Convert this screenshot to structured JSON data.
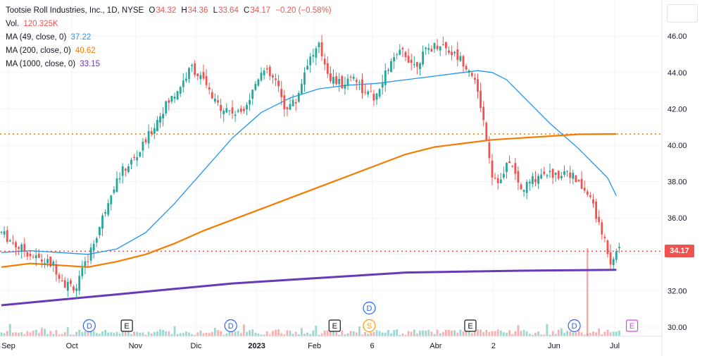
{
  "legend": {
    "title": "Tootsie Roll Industries, Inc., 1D, NYSE",
    "o_label": "O",
    "o": "34.32",
    "h_label": "H",
    "h": "34.36",
    "l_label": "L",
    "l": "33.64",
    "c_label": "C",
    "c": "34.17",
    "change": "−0.20 (−0.58%)",
    "vol_label": "Vol.",
    "vol": "120.325K",
    "ma49_label": "MA (49, close, 0)",
    "ma49": "37.22",
    "ma200_label": "MA (200, close, 0)",
    "ma200": "40.62",
    "ma1000_label": "MA (1000, close, 0)",
    "ma1000": "33.15"
  },
  "price_label": "34.17",
  "colors": {
    "up": "#26a69a",
    "down": "#ef5350",
    "ma49": "#2196f3",
    "ma200": "#f57c00",
    "ma1000": "#673ab7",
    "price_line": "#ef5350",
    "level_line": "#f57c00"
  },
  "chart_data": {
    "type": "candlestick",
    "y_ticks": [
      "46.00",
      "44.00",
      "42.00",
      "40.00",
      "38.00",
      "36.00",
      "34.00",
      "32.00",
      "30.00"
    ],
    "x_ticks": [
      "Sep",
      "Oct",
      "Nov",
      "Dic",
      "2023",
      "Feb",
      "6",
      "Abr",
      "2",
      "Jun",
      "Jul"
    ],
    "ylim": [
      29.6,
      47.4
    ],
    "last_price": 34.17,
    "horizontal_level": 40.62,
    "ma49": [
      [
        0,
        34.1
      ],
      [
        10,
        34.2
      ],
      [
        20,
        34.1
      ],
      [
        30,
        34.0
      ],
      [
        40,
        34.3
      ],
      [
        50,
        35.2
      ],
      [
        60,
        36.8
      ],
      [
        70,
        38.6
      ],
      [
        80,
        40.4
      ],
      [
        90,
        41.8
      ],
      [
        100,
        42.6
      ],
      [
        110,
        43.1
      ],
      [
        120,
        43.3
      ],
      [
        130,
        43.4
      ],
      [
        140,
        43.6
      ],
      [
        150,
        43.8
      ],
      [
        160,
        44.0
      ],
      [
        165,
        44.1
      ],
      [
        170,
        44.0
      ],
      [
        175,
        43.6
      ],
      [
        180,
        42.8
      ],
      [
        185,
        42.0
      ],
      [
        190,
        41.2
      ],
      [
        195,
        40.5
      ],
      [
        200,
        39.8
      ],
      [
        205,
        39.0
      ],
      [
        210,
        38.2
      ],
      [
        213,
        37.22
      ]
    ],
    "ma200": [
      [
        0,
        33.3
      ],
      [
        10,
        33.5
      ],
      [
        20,
        33.4
      ],
      [
        30,
        33.3
      ],
      [
        40,
        33.6
      ],
      [
        50,
        34.0
      ],
      [
        60,
        34.6
      ],
      [
        70,
        35.3
      ],
      [
        80,
        35.9
      ],
      [
        90,
        36.5
      ],
      [
        100,
        37.1
      ],
      [
        110,
        37.7
      ],
      [
        120,
        38.3
      ],
      [
        130,
        38.9
      ],
      [
        140,
        39.5
      ],
      [
        150,
        39.9
      ],
      [
        160,
        40.1
      ],
      [
        170,
        40.3
      ],
      [
        180,
        40.4
      ],
      [
        190,
        40.5
      ],
      [
        200,
        40.6
      ],
      [
        213,
        40.62
      ]
    ],
    "ma1000": [
      [
        0,
        31.2
      ],
      [
        20,
        31.5
      ],
      [
        40,
        31.8
      ],
      [
        60,
        32.1
      ],
      [
        80,
        32.4
      ],
      [
        100,
        32.6
      ],
      [
        120,
        32.8
      ],
      [
        140,
        33.0
      ],
      [
        160,
        33.05
      ],
      [
        180,
        33.1
      ],
      [
        200,
        33.13
      ],
      [
        213,
        33.15
      ]
    ],
    "events": [
      {
        "x": 28,
        "label": "D",
        "kind": "dividend",
        "row": 0
      },
      {
        "x": 41,
        "label": "E",
        "kind": "earnings",
        "row": 0
      },
      {
        "x": 77,
        "label": "D",
        "kind": "dividend",
        "row": 0
      },
      {
        "x": 113,
        "label": "E",
        "kind": "earnings",
        "row": 0
      },
      {
        "x": 125,
        "label": "S",
        "kind": "split",
        "row": 0
      },
      {
        "x": 125,
        "label": "D",
        "kind": "dividend",
        "row": 1
      },
      {
        "x": 160,
        "label": "E",
        "kind": "earnings",
        "row": 0
      },
      {
        "x": 196,
        "label": "D",
        "kind": "dividend",
        "row": 0
      },
      {
        "x": 216,
        "label": "E",
        "kind": "earnings-future",
        "row": 0
      }
    ]
  }
}
